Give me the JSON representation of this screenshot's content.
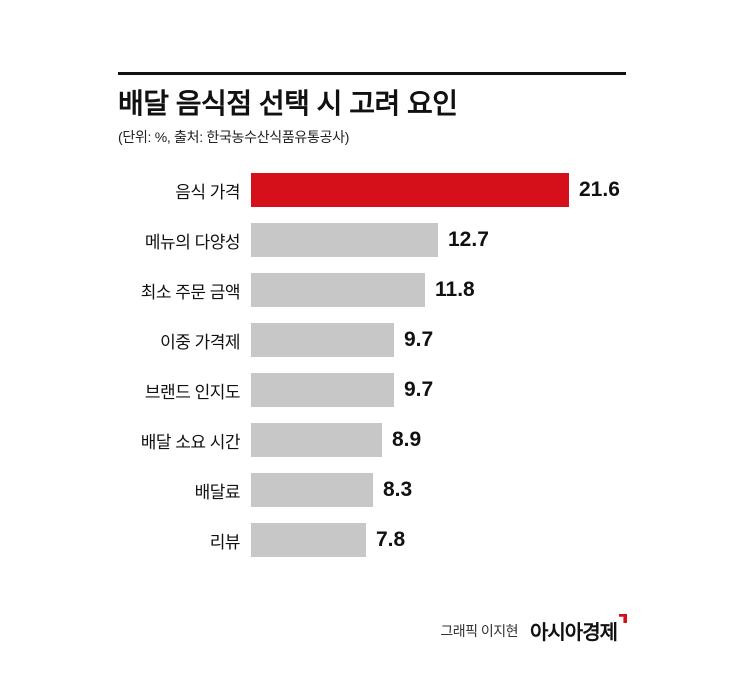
{
  "header": {
    "title": "배달 음식점 선택 시 고려 요인",
    "subtitle": "(단위: %, 출처: 한국농수산식품유통공사)"
  },
  "chart_data": {
    "type": "bar",
    "orientation": "horizontal",
    "title": "배달 음식점 선택 시 고려 요인",
    "unit": "%",
    "source": "한국농수산식품유통공사",
    "categories": [
      "음식 가격",
      "메뉴의 다양성",
      "최소 주문 금액",
      "이중 가격제",
      "브랜드 인지도",
      "배달 소요 시간",
      "배달료",
      "리뷰"
    ],
    "values": [
      21.6,
      12.7,
      11.8,
      9.7,
      9.7,
      8.9,
      8.3,
      7.8
    ],
    "value_labels": [
      "21.6",
      "12.7",
      "11.8",
      "9.7",
      "9.7",
      "8.9",
      "8.3",
      "7.8"
    ],
    "xlim": [
      0,
      21.6
    ],
    "highlight_index": 0,
    "colors": {
      "highlight": "#d6101a",
      "default": "#c7c7c7"
    },
    "legend": "none",
    "grid": false
  },
  "footer": {
    "credit": "그래픽 이지현",
    "logo": "아시아경제"
  }
}
